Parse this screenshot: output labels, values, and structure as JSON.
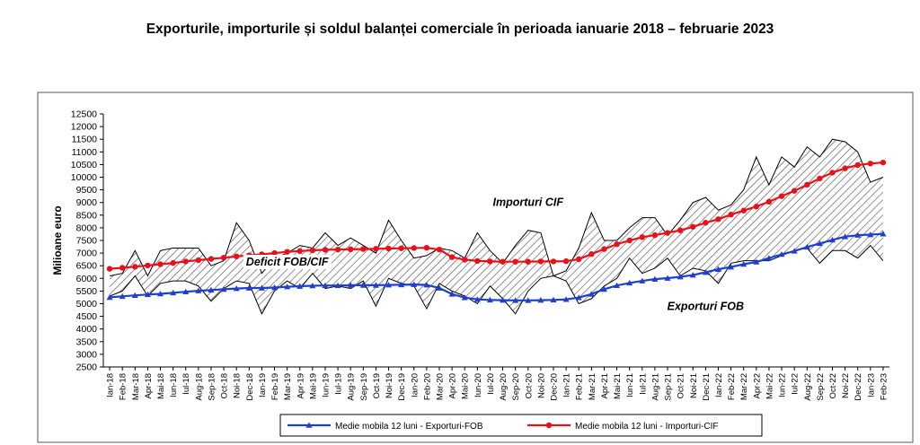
{
  "title": "Exporturile, importurile și soldul balanței comerciale în perioada ianuarie 2018 – februarie 2023",
  "chart_data": {
    "type": "line",
    "ylabel": "Milioane  euro",
    "xlabel": "",
    "ylim": [
      2500,
      12500
    ],
    "ytick_step": 500,
    "categories": [
      "Ian-18",
      "Feb-18",
      "Mar-18",
      "Apr-18",
      "Mai-18",
      "Iun-18",
      "Iul-18",
      "Aug-18",
      "Sep-18",
      "Oct-18",
      "Noi-18",
      "Dec-18",
      "Ian-19",
      "Feb-19",
      "Mar-19",
      "Apr-19",
      "Mai-19",
      "Iun-19",
      "Iul-19",
      "Aug-19",
      "Sep-19",
      "Oct-19",
      "Noi-19",
      "Dec-19",
      "Ian-20",
      "Feb-20",
      "Mar-20",
      "Apr-20",
      "Mai-20",
      "Iun-20",
      "Iul-20",
      "Aug-20",
      "Sep-20",
      "Oct-20",
      "Noi-20",
      "Dec-20",
      "Ian-21",
      "Feb-21",
      "Mar-21",
      "Apr-21",
      "Mai-21",
      "Iun-21",
      "Iul-21",
      "Aug-21",
      "Sep-21",
      "Oct-21",
      "Noi-21",
      "Dec-21",
      "Ian-22",
      "Feb-22",
      "Mar-22",
      "Apr-22",
      "Mai-22",
      "Iun-22",
      "Iul-22",
      "Aug-22",
      "Sep-22",
      "Oct-22",
      "Noi-22",
      "Dec-22",
      "Ian-23",
      "Feb-23"
    ],
    "series": [
      {
        "name": "Exporturi FOB",
        "color": "#000000",
        "values": [
          5300,
          5500,
          6100,
          5300,
          5800,
          5900,
          5900,
          5700,
          5100,
          5600,
          5900,
          5800,
          4600,
          5500,
          5900,
          5600,
          6200,
          5600,
          5700,
          5600,
          5900,
          4900,
          6000,
          5800,
          5700,
          4800,
          5800,
          5500,
          5300,
          5000,
          5700,
          5200,
          4600,
          5500,
          6000,
          6100,
          5900,
          5000,
          5200,
          5700,
          6000,
          6800,
          6200,
          6400,
          6800,
          6100,
          6400,
          6300,
          5800,
          6600,
          6700,
          6700,
          6700,
          6900,
          7100,
          7200,
          6600,
          7100,
          7100,
          6800,
          7300,
          6700
        ]
      },
      {
        "name": "Importuri CIF",
        "color": "#000000",
        "values": [
          6100,
          6200,
          7100,
          6100,
          7100,
          7200,
          7200,
          7200,
          6500,
          6700,
          8200,
          7500,
          6200,
          6800,
          7000,
          7300,
          7200,
          7800,
          7300,
          7600,
          7300,
          7000,
          8300,
          7500,
          6800,
          6900,
          7200,
          7100,
          6800,
          7800,
          7100,
          6600,
          7300,
          7900,
          7800,
          6100,
          6300,
          7200,
          8600,
          7500,
          7500,
          8000,
          8400,
          8400,
          7700,
          8300,
          9000,
          9200,
          8700,
          8900,
          9500,
          10800,
          9700,
          10800,
          10400,
          11200,
          10800,
          11500,
          11400,
          11000,
          9800,
          10000
        ]
      },
      {
        "name": "Medie mobila 12 luni - Exporturi-FOB",
        "color": "#1f3fd0",
        "values": [
          5250,
          5290,
          5330,
          5360,
          5390,
          5430,
          5470,
          5510,
          5540,
          5570,
          5600,
          5620,
          5620,
          5640,
          5670,
          5690,
          5710,
          5720,
          5720,
          5730,
          5730,
          5730,
          5740,
          5750,
          5760,
          5740,
          5620,
          5380,
          5240,
          5170,
          5150,
          5140,
          5130,
          5130,
          5140,
          5150,
          5170,
          5240,
          5380,
          5570,
          5720,
          5820,
          5900,
          5970,
          6010,
          6060,
          6130,
          6240,
          6360,
          6450,
          6560,
          6650,
          6800,
          6950,
          7080,
          7240,
          7380,
          7520,
          7650,
          7710,
          7730,
          7760
        ]
      },
      {
        "name": "Medie mobila 12 luni - Importuri-CIF",
        "color": "#e8101a",
        "values": [
          6380,
          6420,
          6460,
          6510,
          6560,
          6610,
          6670,
          6720,
          6770,
          6820,
          6870,
          6910,
          6950,
          7000,
          7050,
          7080,
          7110,
          7130,
          7140,
          7150,
          7160,
          7170,
          7180,
          7190,
          7200,
          7210,
          7140,
          6840,
          6740,
          6690,
          6670,
          6660,
          6660,
          6660,
          6670,
          6670,
          6680,
          6760,
          6960,
          7160,
          7350,
          7500,
          7630,
          7710,
          7800,
          7900,
          8040,
          8200,
          8340,
          8520,
          8680,
          8840,
          9030,
          9250,
          9460,
          9700,
          9950,
          10180,
          10350,
          10480,
          10540,
          10580
        ]
      }
    ],
    "annotations": [
      {
        "text": "Importuri CIF",
        "x": "Oct-20",
        "y": 9000
      },
      {
        "text": "Deficit FOB/CIF",
        "x": "Mar-19",
        "y": 6650
      },
      {
        "text": "Exporturi FOB",
        "x": "Dec-21",
        "y": 4900
      }
    ],
    "legend": {
      "position": "bottom",
      "items": [
        "Medie mobila 12 luni - Exporturi-FOB",
        "Medie mobila 12 luni - Importuri-CIF"
      ]
    },
    "grid": false
  }
}
